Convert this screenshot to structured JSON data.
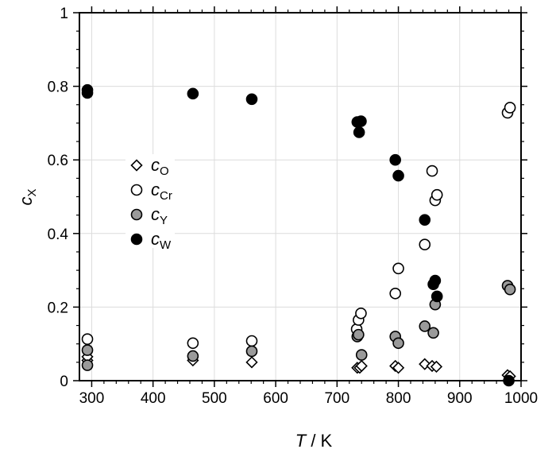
{
  "chart_data": {
    "type": "scatter",
    "xlabel_italic": "T",
    "xlabel_rest": " / K",
    "ylabel_main": "c",
    "ylabel_sub": "X",
    "xlim": [
      280,
      1000
    ],
    "ylim": [
      0,
      1
    ],
    "x_ticks": [
      300,
      400,
      500,
      600,
      700,
      800,
      900,
      1000
    ],
    "y_ticks": [
      0,
      0.2,
      0.4,
      0.6,
      0.8,
      1
    ],
    "y_tick_labels": [
      "0",
      "0.2",
      "0.4",
      "0.6",
      "0.8",
      "1"
    ],
    "grid": true,
    "legend_placement": "center-left",
    "series": [
      {
        "name": "c_O",
        "label_main": "c",
        "label_sub": "O",
        "marker": "diamond-open",
        "x": [
          293,
          293,
          465,
          561,
          733,
          737,
          740,
          795,
          800,
          843,
          855,
          862,
          978,
          982
        ],
        "y": [
          0.055,
          0.065,
          0.055,
          0.05,
          0.035,
          0.035,
          0.04,
          0.04,
          0.035,
          0.045,
          0.04,
          0.038,
          0.015,
          0.012
        ]
      },
      {
        "name": "c_Cr",
        "label_main": "c",
        "label_sub": "Cr",
        "marker": "circle-open",
        "x": [
          293,
          465,
          561,
          732,
          735,
          739,
          795,
          800,
          843,
          855,
          860,
          863,
          978,
          982
        ],
        "y": [
          0.113,
          0.102,
          0.108,
          0.14,
          0.165,
          0.183,
          0.237,
          0.305,
          0.37,
          0.57,
          0.49,
          0.505,
          0.728,
          0.742
        ]
      },
      {
        "name": "c_Y",
        "label_main": "c",
        "label_sub": "Y",
        "marker": "circle-gray",
        "x": [
          293,
          293,
          465,
          561,
          733,
          735,
          740,
          795,
          800,
          843,
          857,
          860,
          978,
          982
        ],
        "y": [
          0.083,
          0.042,
          0.067,
          0.08,
          0.12,
          0.125,
          0.07,
          0.12,
          0.102,
          0.148,
          0.13,
          0.207,
          0.258,
          0.248
        ]
      },
      {
        "name": "c_W",
        "label_main": "c",
        "label_sub": "W",
        "marker": "circle-filled",
        "x": [
          293,
          293,
          465,
          561,
          733,
          736,
          739,
          795,
          800,
          843,
          857,
          860,
          863,
          980
        ],
        "y": [
          0.79,
          0.782,
          0.78,
          0.765,
          0.703,
          0.675,
          0.705,
          0.6,
          0.557,
          0.437,
          0.262,
          0.272,
          0.229,
          0.0
        ]
      }
    ]
  }
}
